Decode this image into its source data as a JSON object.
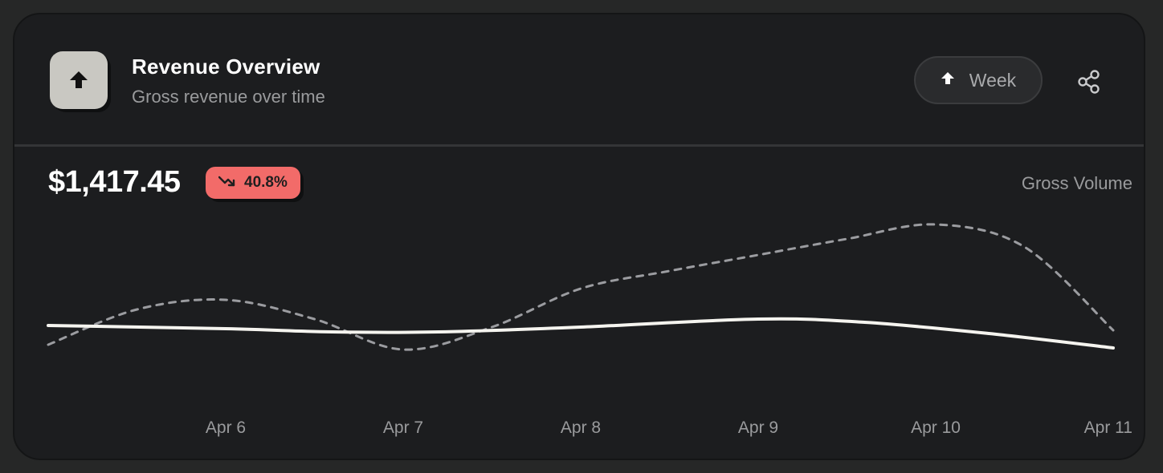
{
  "header": {
    "title": "Revenue Overview",
    "subtitle": "Gross revenue over time",
    "app_icon": "arrow-up-icon",
    "period_button": {
      "label": "Week",
      "icon": "arrow-up-icon"
    },
    "share_icon": "share-icon"
  },
  "summary": {
    "amount": "$1,417.45",
    "change": "40.8%",
    "change_icon": "trend-down-icon",
    "change_color": "#f26b69"
  },
  "legend": {
    "label": "Gross Volume"
  },
  "chart_data": {
    "type": "line",
    "title": "",
    "xlabel": "",
    "ylabel": "",
    "x": [
      5.0,
      6.0,
      7.0,
      8.0,
      9.0,
      10.0,
      11.0
    ],
    "tick_labels": [
      "Apr 6",
      "Apr 7",
      "Apr 8",
      "Apr 9",
      "Apr 10",
      "Apr 11"
    ],
    "tick_positions": [
      6,
      7,
      8,
      9,
      10,
      11
    ],
    "ylim": [
      0,
      100
    ],
    "grid": false,
    "legend": "none",
    "series": [
      {
        "name": "",
        "style": "solid",
        "color": "#f5f4ef",
        "points": [
          [
            5.0,
            44
          ],
          [
            6.0,
            42
          ],
          [
            6.6,
            40
          ],
          [
            7.2,
            40
          ],
          [
            8.0,
            43
          ],
          [
            9.0,
            48
          ],
          [
            9.6,
            46
          ],
          [
            10.3,
            39
          ],
          [
            11.0,
            30
          ]
        ]
      },
      {
        "name": "",
        "style": "dashed",
        "color": "#9b9ca0",
        "points": [
          [
            5.0,
            32
          ],
          [
            5.5,
            54
          ],
          [
            6.0,
            60
          ],
          [
            6.5,
            48
          ],
          [
            7.0,
            29
          ],
          [
            7.5,
            43
          ],
          [
            8.0,
            67
          ],
          [
            8.5,
            78
          ],
          [
            9.0,
            88
          ],
          [
            9.5,
            98
          ],
          [
            10.0,
            107
          ],
          [
            10.5,
            93
          ],
          [
            11.0,
            41
          ]
        ]
      }
    ]
  }
}
